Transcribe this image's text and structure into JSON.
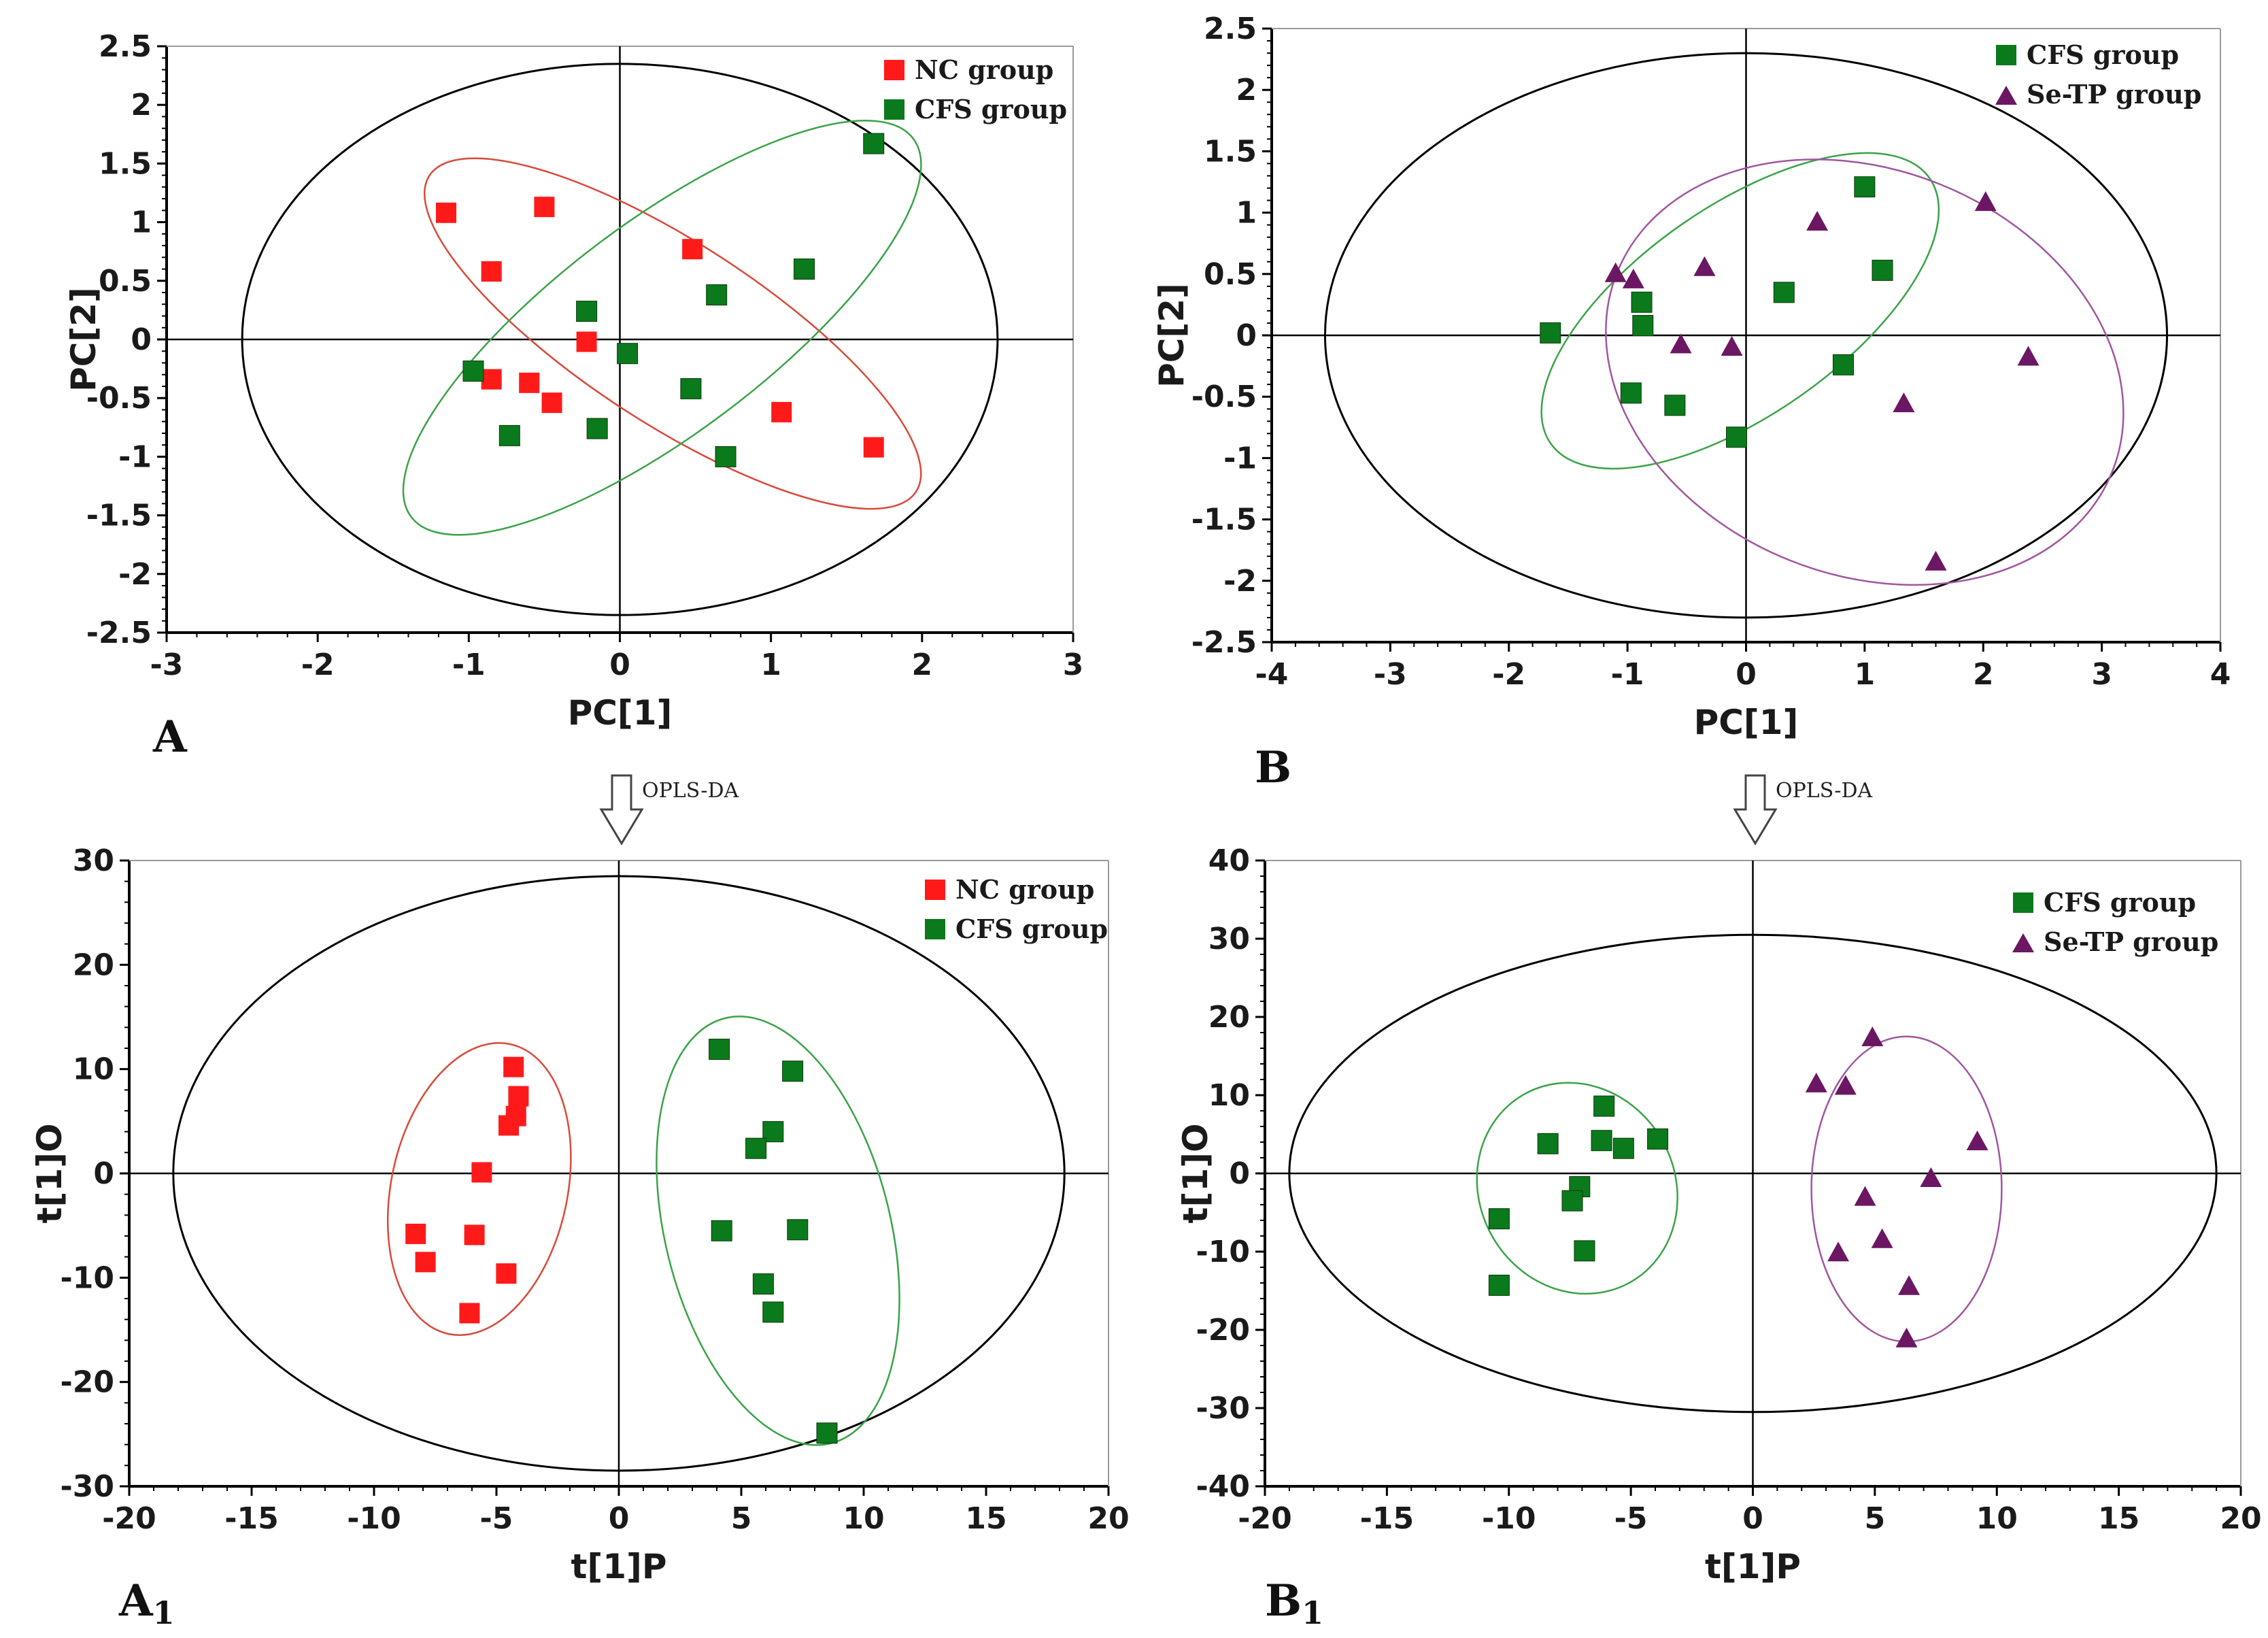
{
  "colors": {
    "nc": "#ff1a1a",
    "cfs": "#0a7a1c",
    "setp": "#6b1763",
    "nc_ellipse": "#d94a3a",
    "cfs_ellipse": "#3aa348",
    "setp_ellipse": "#a056a0",
    "axis": "#000000"
  },
  "arrows": [
    {
      "label": "OPLS-DA"
    },
    {
      "label": "OPLS-DA"
    }
  ],
  "chart_data": [
    {
      "id": "A",
      "type": "scatter",
      "panel_label": "A",
      "panel_sub": "",
      "xlabel": "PC[1]",
      "ylabel": "PC[2]",
      "xlim": [
        -3,
        3
      ],
      "ylim": [
        -2.5,
        2.5
      ],
      "xticks": [
        -3,
        -2,
        -1,
        0,
        1,
        2,
        3
      ],
      "yticks": [
        -2.5,
        -2,
        -1.5,
        -1,
        -0.5,
        0,
        0.5,
        1,
        1.5,
        2,
        2.5
      ],
      "xtick_labels": [
        "-3",
        "-2",
        "-1",
        "0",
        "1",
        "2",
        "3"
      ],
      "ytick_labels": [
        "-2.5",
        "-2",
        "-1.5",
        "-1",
        "-0.5",
        "0",
        "0.5",
        "1",
        "1.5",
        "2",
        "2.5"
      ],
      "legend": [
        {
          "name": "NC group",
          "marker": "square",
          "color": "#ff1a1a"
        },
        {
          "name": "CFS group",
          "marker": "square",
          "color": "#0a7a1c"
        }
      ],
      "series": [
        {
          "name": "NC group",
          "marker": "square",
          "color": "#ff1a1a",
          "points": [
            [
              -1.15,
              1.08
            ],
            [
              -0.5,
              1.13
            ],
            [
              -0.85,
              0.58
            ],
            [
              0.48,
              0.77
            ],
            [
              -0.22,
              -0.02
            ],
            [
              -0.85,
              -0.34
            ],
            [
              -0.6,
              -0.37
            ],
            [
              -0.45,
              -0.54
            ],
            [
              1.07,
              -0.62
            ],
            [
              1.68,
              -0.92
            ]
          ]
        },
        {
          "name": "CFS group",
          "marker": "square",
          "color": "#0a7a1c",
          "points": [
            [
              1.68,
              1.67
            ],
            [
              1.22,
              0.6
            ],
            [
              0.64,
              0.38
            ],
            [
              -0.22,
              0.24
            ],
            [
              0.05,
              -0.12
            ],
            [
              -0.97,
              -0.27
            ],
            [
              0.47,
              -0.42
            ],
            [
              -0.73,
              -0.82
            ],
            [
              -0.15,
              -0.76
            ],
            [
              0.7,
              -1.0
            ]
          ]
        }
      ],
      "ellipses": [
        {
          "name": "hotelling",
          "cx": 0,
          "cy": 0,
          "rx": 2.5,
          "ry": 2.35,
          "angle": 0,
          "color": "#000000"
        },
        {
          "name": "NC group",
          "cx": 0.35,
          "cy": 0.05,
          "rx": 1.92,
          "ry": 0.77,
          "angle": -33,
          "color": "#d94a3a"
        },
        {
          "name": "CFS group",
          "cx": 0.28,
          "cy": 0.1,
          "rx": 2.08,
          "ry": 0.9,
          "angle": 37,
          "color": "#3aa348"
        }
      ]
    },
    {
      "id": "B",
      "type": "scatter",
      "panel_label": "B",
      "panel_sub": "",
      "xlabel": "PC[1]",
      "ylabel": "PC[2]",
      "xlim": [
        -4,
        4
      ],
      "ylim": [
        -2.5,
        2.5
      ],
      "xticks": [
        -4,
        -3,
        -2,
        -1,
        0,
        1,
        2,
        3,
        4
      ],
      "yticks": [
        -2.5,
        -2,
        -1.5,
        -1,
        -0.5,
        0,
        0.5,
        1,
        1.5,
        2,
        2.5
      ],
      "xtick_labels": [
        "-4",
        "-3",
        "-2",
        "-1",
        "0",
        "1",
        "2",
        "3",
        "4"
      ],
      "ytick_labels": [
        "-2.5",
        "-2",
        "-1.5",
        "-1",
        "-0.5",
        "0",
        "0.5",
        "1",
        "1.5",
        "2",
        "2.5"
      ],
      "legend": [
        {
          "name": "CFS group",
          "marker": "square",
          "color": "#0a7a1c"
        },
        {
          "name": "Se-TP group",
          "marker": "triangle",
          "color": "#6b1763"
        }
      ],
      "series": [
        {
          "name": "CFS group",
          "marker": "square",
          "color": "#0a7a1c",
          "points": [
            [
              -1.65,
              0.02
            ],
            [
              -0.88,
              0.27
            ],
            [
              -0.87,
              0.08
            ],
            [
              1.0,
              1.21
            ],
            [
              1.15,
              0.53
            ],
            [
              0.32,
              0.35
            ],
            [
              -0.97,
              -0.47
            ],
            [
              -0.6,
              -0.57
            ],
            [
              0.82,
              -0.24
            ],
            [
              -0.08,
              -0.83
            ]
          ]
        },
        {
          "name": "Se-TP group",
          "marker": "triangle",
          "color": "#6b1763",
          "points": [
            [
              -1.1,
              0.5
            ],
            [
              -0.95,
              0.45
            ],
            [
              -0.35,
              0.55
            ],
            [
              0.6,
              0.92
            ],
            [
              2.02,
              1.08
            ],
            [
              -0.55,
              -0.08
            ],
            [
              -0.12,
              -0.1
            ],
            [
              2.38,
              -0.18
            ],
            [
              1.33,
              -0.56
            ],
            [
              1.6,
              -1.85
            ]
          ]
        }
      ],
      "ellipses": [
        {
          "name": "hotelling",
          "cx": 0,
          "cy": 0,
          "rx": 3.55,
          "ry": 2.3,
          "angle": 0,
          "color": "#000000"
        },
        {
          "name": "CFS group",
          "cx": -0.05,
          "cy": 0.2,
          "rx": 1.95,
          "ry": 0.85,
          "angle": 35,
          "color": "#3aa348"
        },
        {
          "name": "Se-TP group",
          "cx": 1.0,
          "cy": -0.3,
          "rx": 2.25,
          "ry": 1.65,
          "angle": -22,
          "color": "#a056a0"
        }
      ]
    },
    {
      "id": "A1",
      "type": "scatter",
      "panel_label": "A",
      "panel_sub": "1",
      "xlabel": "t[1]P",
      "ylabel": "t[1]O",
      "xlim": [
        -20,
        20
      ],
      "ylim": [
        -30,
        30
      ],
      "xticks": [
        -20,
        -15,
        -10,
        -5,
        0,
        5,
        10,
        15,
        20
      ],
      "yticks": [
        -30,
        -20,
        -10,
        0,
        10,
        20,
        30
      ],
      "xtick_labels": [
        "-20",
        "-15",
        "-10",
        "-5",
        "0",
        "5",
        "10",
        "15",
        "20"
      ],
      "ytick_labels": [
        "-30",
        "-20",
        "-10",
        "0",
        "10",
        "20",
        "30"
      ],
      "legend": [
        {
          "name": "NC group",
          "marker": "square",
          "color": "#ff1a1a"
        },
        {
          "name": "CFS group",
          "marker": "square",
          "color": "#0a7a1c"
        }
      ],
      "series": [
        {
          "name": "NC group",
          "marker": "square",
          "color": "#ff1a1a",
          "points": [
            [
              -4.3,
              10.2
            ],
            [
              -4.1,
              7.4
            ],
            [
              -4.2,
              5.5
            ],
            [
              -4.5,
              4.6
            ],
            [
              -5.6,
              0.1
            ],
            [
              -8.3,
              -5.8
            ],
            [
              -5.9,
              -5.9
            ],
            [
              -7.9,
              -8.5
            ],
            [
              -4.6,
              -9.6
            ],
            [
              -6.1,
              -13.4
            ]
          ]
        },
        {
          "name": "CFS group",
          "marker": "square",
          "color": "#0a7a1c",
          "points": [
            [
              4.1,
              11.9
            ],
            [
              7.1,
              9.8
            ],
            [
              6.3,
              4.0
            ],
            [
              5.6,
              2.4
            ],
            [
              4.2,
              -5.5
            ],
            [
              7.3,
              -5.4
            ],
            [
              5.9,
              -10.6
            ],
            [
              6.3,
              -13.3
            ],
            [
              8.5,
              -24.9
            ]
          ]
        }
      ],
      "ellipses": [
        {
          "name": "hotelling",
          "cx": 0,
          "cy": 0,
          "rx": 18.2,
          "ry": 28.5,
          "angle": 0,
          "color": "#000000"
        },
        {
          "name": "NC group",
          "cx": -5.7,
          "cy": -1.5,
          "rx": 3.6,
          "ry": 14.2,
          "angle": -12,
          "color": "#d94a3a"
        },
        {
          "name": "CFS group",
          "cx": 6.5,
          "cy": -5.5,
          "rx": 4.6,
          "ry": 21.0,
          "angle": 14,
          "color": "#3aa348"
        }
      ]
    },
    {
      "id": "B1",
      "type": "scatter",
      "panel_label": "B",
      "panel_sub": "1",
      "xlabel": "t[1]P",
      "ylabel": "t[1]O",
      "xlim": [
        -20,
        20
      ],
      "ylim": [
        -40,
        40
      ],
      "xticks": [
        -20,
        -15,
        -10,
        -5,
        0,
        5,
        10,
        15,
        20
      ],
      "yticks": [
        -40,
        -30,
        -20,
        -10,
        0,
        10,
        20,
        30,
        40
      ],
      "xtick_labels": [
        "-20",
        "-15",
        "-10",
        "-5",
        "0",
        "5",
        "10",
        "15",
        "20"
      ],
      "ytick_labels": [
        "-40",
        "-30",
        "-20",
        "-10",
        "0",
        "10",
        "20",
        "30",
        "40"
      ],
      "legend": [
        {
          "name": "CFS group",
          "marker": "square",
          "color": "#0a7a1c"
        },
        {
          "name": "Se-TP group",
          "marker": "triangle",
          "color": "#6b1763"
        }
      ],
      "series": [
        {
          "name": "CFS group",
          "marker": "square",
          "color": "#0a7a1c",
          "points": [
            [
              -6.1,
              8.6
            ],
            [
              -8.4,
              3.8
            ],
            [
              -6.2,
              4.2
            ],
            [
              -5.3,
              3.2
            ],
            [
              -3.9,
              4.4
            ],
            [
              -7.1,
              -1.7
            ],
            [
              -7.4,
              -3.5
            ],
            [
              -6.9,
              -9.9
            ],
            [
              -10.4,
              -5.8
            ],
            [
              -10.4,
              -14.3
            ]
          ]
        },
        {
          "name": "Se-TP group",
          "marker": "triangle",
          "color": "#6b1763",
          "points": [
            [
              4.9,
              17.3
            ],
            [
              2.6,
              11.4
            ],
            [
              3.8,
              11.1
            ],
            [
              9.2,
              4.0
            ],
            [
              7.3,
              -0.7
            ],
            [
              4.6,
              -3.1
            ],
            [
              5.3,
              -8.5
            ],
            [
              3.5,
              -10.2
            ],
            [
              6.4,
              -14.5
            ],
            [
              6.3,
              -21.2
            ]
          ]
        }
      ],
      "ellipses": [
        {
          "name": "hotelling",
          "cx": 0,
          "cy": 0,
          "rx": 19.0,
          "ry": 30.5,
          "angle": 0,
          "color": "#000000"
        },
        {
          "name": "CFS group",
          "cx": -7.2,
          "cy": -1.9,
          "rx": 4.0,
          "ry": 13.8,
          "angle": 30,
          "color": "#3aa348"
        },
        {
          "name": "Se-TP group",
          "cx": 6.3,
          "cy": -2.0,
          "rx": 3.9,
          "ry": 19.5,
          "angle": 0,
          "color": "#a056a0"
        }
      ]
    }
  ]
}
